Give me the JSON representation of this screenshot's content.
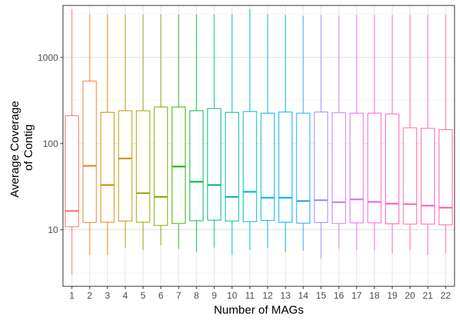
{
  "chart_data": {
    "type": "boxplot",
    "xlabel": "Number of MAGs",
    "ylabel_lines": [
      "Average Coverage",
      "of Contig"
    ],
    "yscale": "log10",
    "ylim": [
      2.2,
      4000
    ],
    "y_ticks": [
      10,
      100,
      1000
    ],
    "y_tick_labels": [
      "10",
      "100",
      "1000"
    ],
    "grid": true,
    "categories": [
      "1",
      "2",
      "3",
      "4",
      "5",
      "6",
      "7",
      "8",
      "9",
      "10",
      "11",
      "12",
      "13",
      "14",
      "15",
      "16",
      "17",
      "18",
      "19",
      "20",
      "21",
      "22"
    ],
    "colors": [
      "#F8766D",
      "#EA8331",
      "#D89000",
      "#C09B00",
      "#A3A500",
      "#7CAE00",
      "#39B600",
      "#00BB4E",
      "#00BF7D",
      "#00C1A3",
      "#00BFC4",
      "#00BAE0",
      "#00B0F6",
      "#35A2FF",
      "#9590FF",
      "#C77CFF",
      "#E76BF3",
      "#FA62DB",
      "#FF62BC",
      "#FF6C90",
      "#FF61C3",
      "#FF5FB0"
    ],
    "boxes": [
      {
        "category": "1",
        "whisker_low": 3.0,
        "q1": 10.8,
        "median": 16.5,
        "q3": 210,
        "whisker_high": 3600
      },
      {
        "category": "2",
        "whisker_low": 5.1,
        "q1": 12.1,
        "median": 55,
        "q3": 530,
        "whisker_high": 3150
      },
      {
        "category": "3",
        "whisker_low": 5.1,
        "q1": 12.2,
        "median": 33,
        "q3": 230,
        "whisker_high": 3150
      },
      {
        "category": "4",
        "whisker_low": 6.2,
        "q1": 12.6,
        "median": 67,
        "q3": 240,
        "whisker_high": 3150
      },
      {
        "category": "5",
        "whisker_low": 5.8,
        "q1": 12.2,
        "median": 26.5,
        "q3": 240,
        "whisker_high": 3150
      },
      {
        "category": "6",
        "whisker_low": 6.6,
        "q1": 11.2,
        "median": 24,
        "q3": 265,
        "whisker_high": 3150
      },
      {
        "category": "7",
        "whisker_low": 6.0,
        "q1": 11.8,
        "median": 54,
        "q3": 265,
        "whisker_high": 3150
      },
      {
        "category": "8",
        "whisker_low": 5.5,
        "q1": 12.7,
        "median": 36,
        "q3": 240,
        "whisker_high": 3150
      },
      {
        "category": "9",
        "whisker_low": 6.2,
        "q1": 12.9,
        "median": 33,
        "q3": 255,
        "whisker_high": 3150
      },
      {
        "category": "10",
        "whisker_low": 5.1,
        "q1": 12.6,
        "median": 24,
        "q3": 230,
        "whisker_high": 3150
      },
      {
        "category": "11",
        "whisker_low": 5.8,
        "q1": 12.4,
        "median": 27.5,
        "q3": 235,
        "whisker_high": 3650
      },
      {
        "category": "12",
        "whisker_low": 6.1,
        "q1": 12.8,
        "median": 23.5,
        "q3": 225,
        "whisker_high": 3150
      },
      {
        "category": "13",
        "whisker_low": 5.5,
        "q1": 12.2,
        "median": 23.5,
        "q3": 232,
        "whisker_high": 3100
      },
      {
        "category": "14",
        "whisker_low": 5.7,
        "q1": 11.9,
        "median": 21.5,
        "q3": 225,
        "whisker_high": 3050
      },
      {
        "category": "15",
        "whisker_low": 4.6,
        "q1": 12.1,
        "median": 22,
        "q3": 232,
        "whisker_high": 3100
      },
      {
        "category": "16",
        "whisker_low": 6.0,
        "q1": 11.8,
        "median": 20.8,
        "q3": 228,
        "whisker_high": 3050
      },
      {
        "category": "17",
        "whisker_low": 5.8,
        "q1": 12.0,
        "median": 22.5,
        "q3": 225,
        "whisker_high": 3100
      },
      {
        "category": "18",
        "whisker_low": 5.8,
        "q1": 12.0,
        "median": 21,
        "q3": 225,
        "whisker_high": 3100
      },
      {
        "category": "19",
        "whisker_low": 5.3,
        "q1": 11.7,
        "median": 20,
        "q3": 220,
        "whisker_high": 3100
      },
      {
        "category": "20",
        "whisker_low": 5.8,
        "q1": 11.6,
        "median": 19.8,
        "q3": 152,
        "whisker_high": 3100
      },
      {
        "category": "21",
        "whisker_low": 5.1,
        "q1": 11.6,
        "median": 19,
        "q3": 150,
        "whisker_high": 3100
      },
      {
        "category": "22",
        "whisker_low": 5.3,
        "q1": 11.4,
        "median": 18,
        "q3": 145,
        "whisker_high": 3100
      }
    ]
  }
}
